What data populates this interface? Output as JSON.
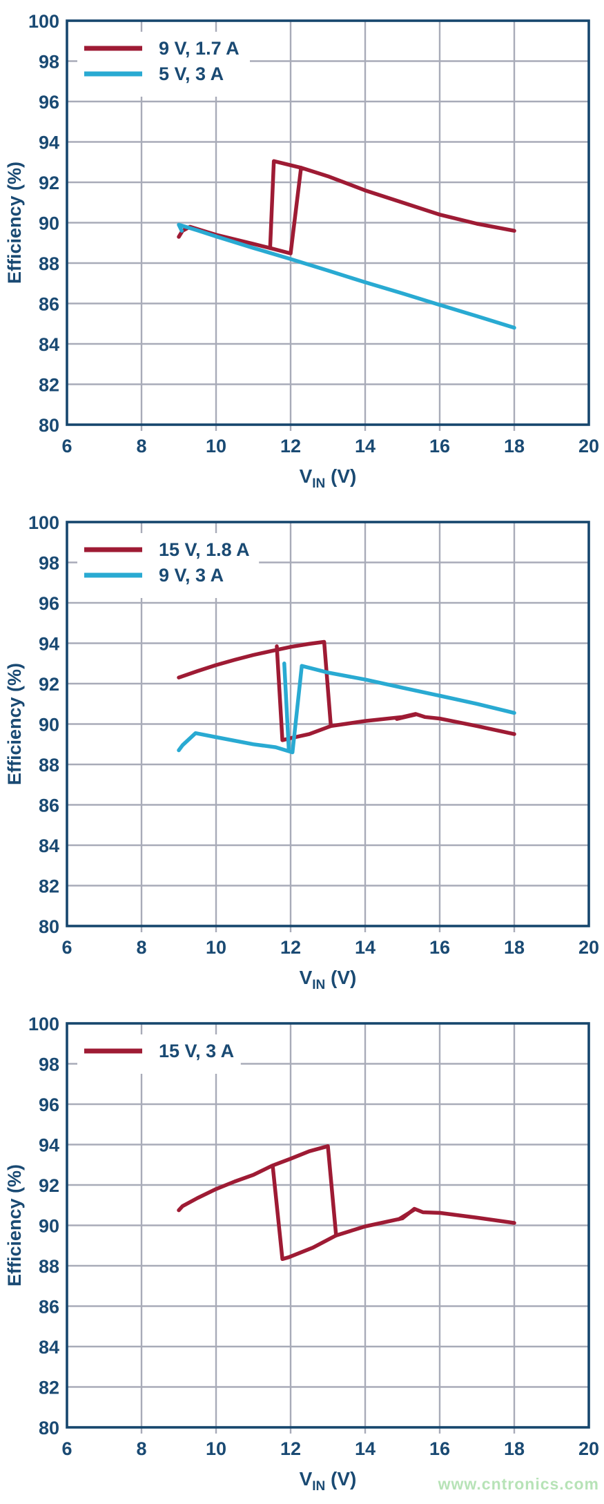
{
  "page": {
    "watermark": "www.cntronics.com"
  },
  "colors": {
    "background": "#ffffff",
    "frame": "#16466d",
    "text": "#1a4a73",
    "grid": "#a8abb8",
    "red": "#9e1b34",
    "cyan": "#29aad2",
    "watermark": "#b7e3b7"
  },
  "chart_data": [
    {
      "type": "line",
      "title": "",
      "xlabel_main": "V",
      "xlabel_sub": "IN",
      "xlabel_suffix": "(V)",
      "ylabel": "Efficiency (%)",
      "xlim": [
        6,
        20
      ],
      "ylim": [
        80,
        100
      ],
      "x_ticks": [
        6,
        8,
        10,
        12,
        14,
        16,
        18,
        20
      ],
      "y_ticks": [
        80,
        82,
        84,
        86,
        88,
        90,
        92,
        94,
        96,
        98,
        100
      ],
      "grid": true,
      "legend_position": "top-left",
      "legend": [
        {
          "label": "9 V, 1.7 A",
          "color": "#9e1b34"
        },
        {
          "label": "5 V, 3 A",
          "color": "#29aad2"
        }
      ],
      "series": [
        {
          "name": "9 V, 1.7 A",
          "color": "#9e1b34",
          "segments": [
            [
              [
                9,
                89.3
              ],
              [
                9.1,
                89.6
              ],
              [
                9.3,
                89.8
              ],
              [
                10,
                89.4
              ],
              [
                11,
                88.95
              ],
              [
                11.5,
                88.72
              ],
              [
                12.0,
                88.48
              ],
              [
                12.28,
                92.72
              ],
              [
                13,
                92.3
              ],
              [
                14,
                91.6
              ],
              [
                15,
                91.0
              ],
              [
                16,
                90.4
              ],
              [
                17,
                89.95
              ],
              [
                18,
                89.6
              ]
            ],
            [
              [
                12.28,
                92.72
              ],
              [
                11.55,
                93.05
              ],
              [
                11.45,
                88.75
              ]
            ]
          ]
        },
        {
          "name": "5 V, 3 A",
          "color": "#29aad2",
          "segments": [
            [
              [
                9.08,
                89.6
              ],
              [
                9.0,
                89.9
              ],
              [
                9.5,
                89.62
              ],
              [
                10,
                89.32
              ],
              [
                11,
                88.75
              ],
              [
                12,
                88.2
              ],
              [
                13,
                87.63
              ],
              [
                14,
                87.05
              ],
              [
                15,
                86.5
              ],
              [
                16,
                85.93
              ],
              [
                17,
                85.37
              ],
              [
                18,
                84.8
              ]
            ]
          ]
        }
      ]
    },
    {
      "type": "line",
      "title": "",
      "xlabel_main": "V",
      "xlabel_sub": "IN",
      "xlabel_suffix": "(V)",
      "ylabel": "Efficiency (%)",
      "xlim": [
        6,
        20
      ],
      "ylim": [
        80,
        100
      ],
      "x_ticks": [
        6,
        8,
        10,
        12,
        14,
        16,
        18,
        20
      ],
      "y_ticks": [
        80,
        82,
        84,
        86,
        88,
        90,
        92,
        94,
        96,
        98,
        100
      ],
      "grid": true,
      "legend_position": "top-left",
      "legend": [
        {
          "label": "15 V, 1.8 A",
          "color": "#9e1b34"
        },
        {
          "label": "9 V, 3 A",
          "color": "#29aad2"
        }
      ],
      "series": [
        {
          "name": "15 V, 1.8 A",
          "color": "#9e1b34",
          "segments": [
            [
              [
                9,
                92.3
              ],
              [
                9.5,
                92.62
              ],
              [
                10,
                92.92
              ],
              [
                10.5,
                93.18
              ],
              [
                11,
                93.42
              ],
              [
                11.5,
                93.62
              ],
              [
                12,
                93.82
              ],
              [
                12.5,
                93.97
              ],
              [
                12.9,
                94.07
              ],
              [
                13.08,
                89.9
              ],
              [
                14,
                90.15
              ],
              [
                15,
                90.35
              ],
              [
                15.35,
                90.5
              ],
              [
                15.6,
                90.35
              ],
              [
                16,
                90.27
              ],
              [
                17,
                89.9
              ],
              [
                18,
                89.5
              ]
            ],
            [
              [
                13.08,
                89.9
              ],
              [
                12.5,
                89.5
              ],
              [
                11.95,
                89.28
              ],
              [
                11.78,
                89.2
              ],
              [
                11.63,
                93.85
              ]
            ],
            [
              [
                14.85,
                90.25
              ],
              [
                15.35,
                90.47
              ]
            ]
          ]
        },
        {
          "name": "9 V, 3 A",
          "color": "#29aad2",
          "segments": [
            [
              [
                9,
                88.7
              ],
              [
                9.1,
                88.95
              ],
              [
                9.45,
                89.55
              ],
              [
                10,
                89.35
              ],
              [
                11,
                89.0
              ],
              [
                11.6,
                88.85
              ],
              [
                12.05,
                88.6
              ],
              [
                12.3,
                92.88
              ],
              [
                13,
                92.55
              ],
              [
                14,
                92.2
              ],
              [
                15,
                91.8
              ],
              [
                16,
                91.4
              ],
              [
                17,
                91.0
              ],
              [
                18,
                90.55
              ]
            ],
            [
              [
                11.83,
                93.0
              ],
              [
                11.95,
                88.78
              ]
            ]
          ]
        }
      ]
    },
    {
      "type": "line",
      "title": "",
      "xlabel_main": "V",
      "xlabel_sub": "IN",
      "xlabel_suffix": "(V)",
      "ylabel": "Efficiency (%)",
      "xlim": [
        6,
        20
      ],
      "ylim": [
        80,
        100
      ],
      "x_ticks": [
        6,
        8,
        10,
        12,
        14,
        16,
        18,
        20
      ],
      "y_ticks": [
        80,
        82,
        84,
        86,
        88,
        90,
        92,
        94,
        96,
        98,
        100
      ],
      "grid": true,
      "legend_position": "top-left",
      "legend": [
        {
          "label": "15 V, 3 A",
          "color": "#9e1b34"
        }
      ],
      "series": [
        {
          "name": "15 V, 3 A",
          "color": "#9e1b34",
          "segments": [
            [
              [
                9,
                90.75
              ],
              [
                9.1,
                90.95
              ],
              [
                9.5,
                91.35
              ],
              [
                10,
                91.8
              ],
              [
                10.5,
                92.17
              ],
              [
                11,
                92.5
              ],
              [
                11.5,
                92.95
              ],
              [
                12,
                93.3
              ],
              [
                12.5,
                93.67
              ],
              [
                13.0,
                93.92
              ],
              [
                13.22,
                89.5
              ],
              [
                14,
                89.95
              ],
              [
                15,
                90.35
              ],
              [
                15.32,
                90.82
              ],
              [
                15.55,
                90.65
              ],
              [
                16,
                90.62
              ],
              [
                17,
                90.38
              ],
              [
                18,
                90.12
              ]
            ],
            [
              [
                13.22,
                89.5
              ],
              [
                12.6,
                88.9
              ],
              [
                11.95,
                88.42
              ],
              [
                11.78,
                88.33
              ],
              [
                11.52,
                92.93
              ]
            ],
            [
              [
                14.9,
                90.3
              ],
              [
                15.32,
                90.78
              ]
            ]
          ]
        }
      ]
    }
  ]
}
